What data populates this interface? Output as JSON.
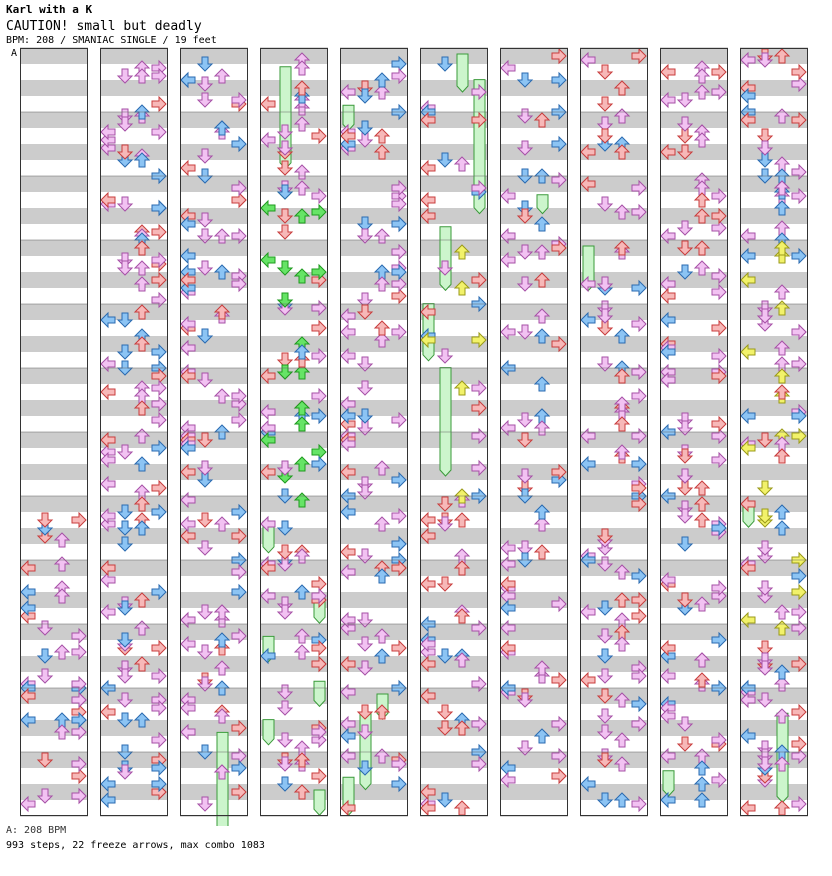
{
  "song": {
    "title": "Karl with a K",
    "subtitle": "CAUTION! small but deadly",
    "meta": "BPM: 208 / SMANIAC SINGLE / 19 feet",
    "bpm_marker": "A"
  },
  "footer": {
    "bpm_line": "A: 208 BPM",
    "stats_line": "993 steps, 22 freeze arrows, max combo 1083"
  },
  "colors": {
    "red_fill": "#f7b8b8",
    "red_stroke": "#c83c3c",
    "blue_fill": "#8cc4f4",
    "blue_stroke": "#2a6ab0",
    "pink_fill": "#f2c2f2",
    "pink_stroke": "#a650a6",
    "green_fill": "#66e466",
    "green_stroke": "#1e9a1e",
    "yellow_fill": "#f2f26a",
    "yellow_stroke": "#9a9a18",
    "freeze_fill": "#ccf5cc",
    "freeze_stroke": "#3a9a3a",
    "stripe_gray": "#cccccc"
  },
  "chart_data": {
    "type": "step-chart",
    "title": "Karl with a K",
    "bpm": 208,
    "difficulty": "SMANIAC SINGLE",
    "feet": 19,
    "steps": 993,
    "freeze_arrows": 22,
    "max_combo": 1083,
    "columns": 10,
    "measures_per_column": 12,
    "density_per_measure": [
      [
        0,
        0,
        0,
        0,
        0,
        0,
        0,
        6,
        7,
        9,
        10,
        9
      ],
      [
        9,
        10,
        10,
        9,
        10,
        9,
        9,
        9,
        8,
        9,
        8,
        9
      ],
      [
        8,
        7,
        9,
        9,
        8,
        9,
        9,
        9,
        8,
        9,
        8,
        8
      ],
      [
        7,
        8,
        10,
        10,
        10,
        10,
        9,
        8,
        8,
        8,
        7,
        8
      ],
      [
        8,
        8,
        8,
        8,
        8,
        8,
        8,
        8,
        8,
        8,
        7,
        7
      ],
      [
        4,
        5,
        4,
        5,
        5,
        4,
        4,
        8,
        8,
        8,
        8,
        8
      ],
      [
        6,
        6,
        6,
        6,
        6,
        6,
        6,
        7,
        6,
        7,
        6,
        6
      ],
      [
        7,
        6,
        5,
        7,
        8,
        8,
        8,
        8,
        9,
        8,
        8,
        8
      ],
      [
        8,
        8,
        8,
        8,
        8,
        8,
        8,
        8,
        8,
        9,
        9,
        9
      ],
      [
        10,
        9,
        9,
        8,
        8,
        8,
        8,
        9,
        10,
        10,
        10,
        9
      ]
    ],
    "freeze_spans": [
      [],
      [],
      [
        [
          2,
          10.6,
          1.5
        ]
      ],
      [
        [
          1,
          0.2,
          1.5
        ],
        [
          0,
          7.3,
          0.4
        ],
        [
          3,
          8.5,
          0.3
        ],
        [
          0,
          9.1,
          0.3
        ],
        [
          3,
          9.8,
          0.3
        ],
        [
          0,
          10.4,
          0.3
        ],
        [
          3,
          11.5,
          0.3
        ]
      ],
      [
        [
          0,
          0.8,
          0.3
        ],
        [
          2,
          10.0,
          0.3
        ],
        [
          1,
          10.3,
          1.1
        ],
        [
          0,
          11.3,
          0.5
        ]
      ],
      [
        [
          2,
          0.0,
          0.5
        ],
        [
          3,
          0.4,
          2.0
        ],
        [
          1,
          2.7,
          0.9
        ],
        [
          0,
          3.9,
          0.8
        ],
        [
          1,
          4.9,
          1.6
        ]
      ],
      [
        [
          2,
          2.2,
          0.2
        ]
      ],
      [
        [
          0,
          3.0,
          0.6
        ]
      ],
      [
        [
          0,
          11.2,
          0.3
        ]
      ],
      [
        [
          0,
          7.0,
          0.3
        ],
        [
          2,
          10.3,
          1.3
        ]
      ]
    ]
  }
}
